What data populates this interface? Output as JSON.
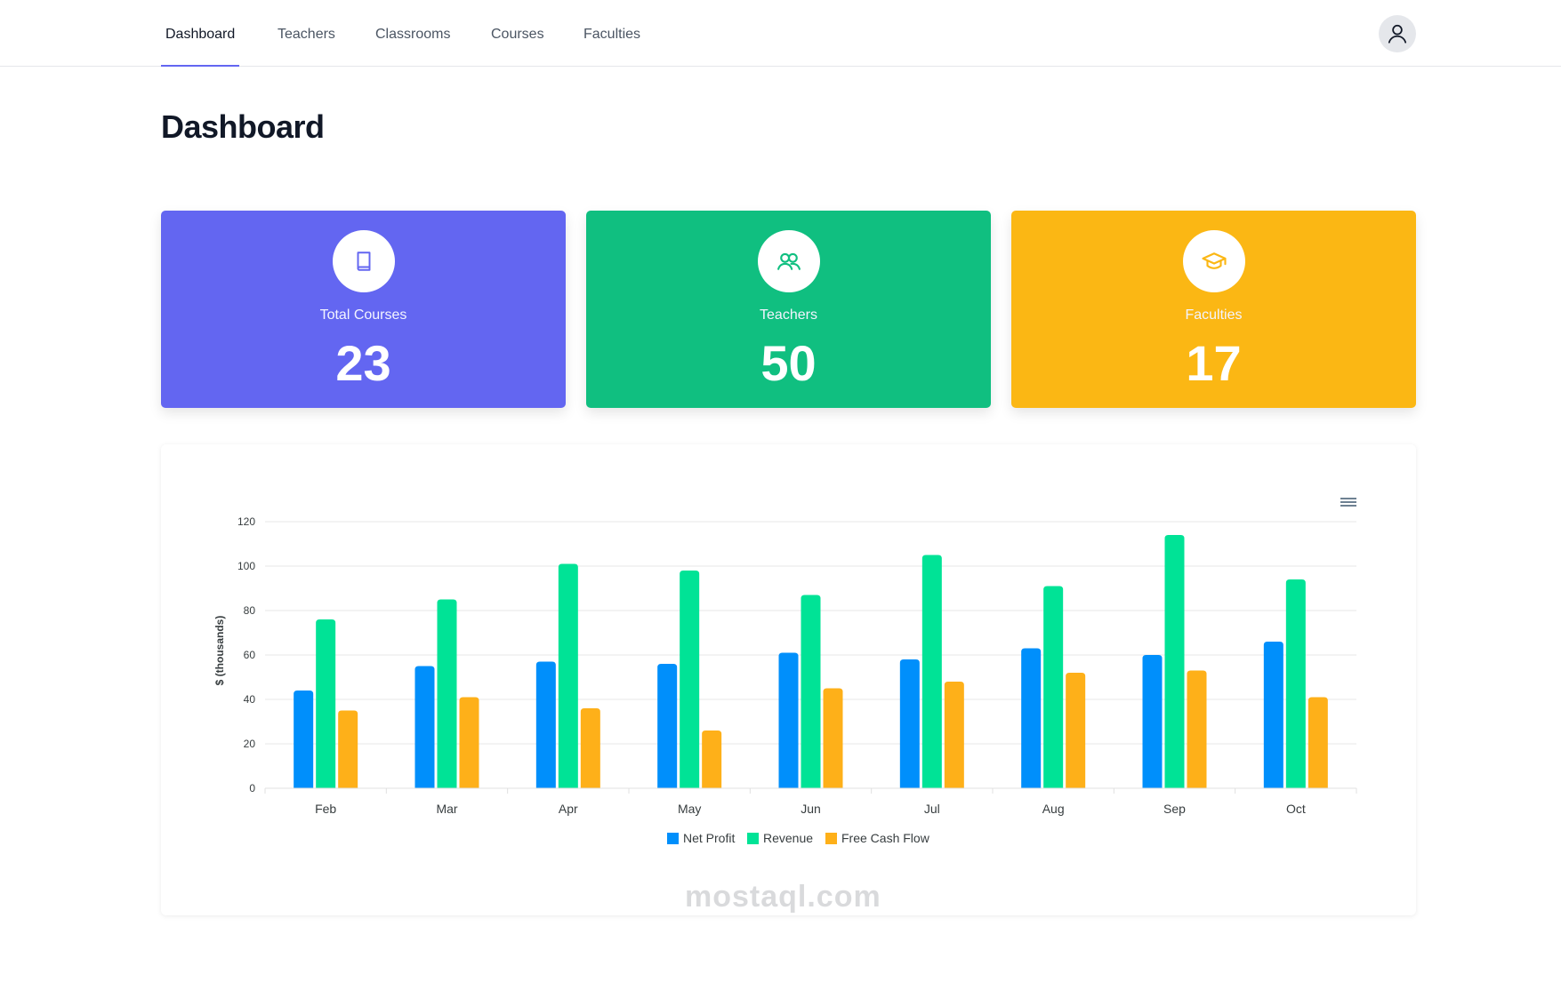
{
  "nav": {
    "items": [
      {
        "label": "Dashboard",
        "active": true
      },
      {
        "label": "Teachers",
        "active": false
      },
      {
        "label": "Classrooms",
        "active": false
      },
      {
        "label": "Courses",
        "active": false
      },
      {
        "label": "Faculties",
        "active": false
      }
    ],
    "avatar_icon": "user-icon"
  },
  "page": {
    "title": "Dashboard"
  },
  "cards": [
    {
      "label": "Total Courses",
      "value": "23",
      "color": "#6366f1",
      "icon": "book-icon",
      "icon_color": "#6366f1"
    },
    {
      "label": "Teachers",
      "value": "50",
      "color": "#10bf80",
      "icon": "users-icon",
      "icon_color": "#10bf80"
    },
    {
      "label": "Faculties",
      "value": "17",
      "color": "#fbb714",
      "icon": "graduation-cap-icon",
      "icon_color": "#fbb714"
    }
  ],
  "chart_data": {
    "type": "bar",
    "categories": [
      "Feb",
      "Mar",
      "Apr",
      "May",
      "Jun",
      "Jul",
      "Aug",
      "Sep",
      "Oct"
    ],
    "series": [
      {
        "name": "Net Profit",
        "color": "#008ffb",
        "values": [
          44,
          55,
          57,
          56,
          61,
          58,
          63,
          60,
          66
        ]
      },
      {
        "name": "Revenue",
        "color": "#00e396",
        "values": [
          76,
          85,
          101,
          98,
          87,
          105,
          91,
          114,
          94
        ]
      },
      {
        "name": "Free Cash Flow",
        "color": "#feb019",
        "values": [
          35,
          41,
          36,
          26,
          45,
          48,
          52,
          53,
          41
        ]
      }
    ],
    "ylabel": "$ (thousands)",
    "ylim": [
      0,
      120
    ],
    "yticks": [
      0,
      20,
      40,
      60,
      80,
      100,
      120
    ],
    "grid": true,
    "legend": "bottom-center"
  },
  "chart_menu_icon": "hamburger-menu-icon",
  "watermark": "mostaql.com"
}
